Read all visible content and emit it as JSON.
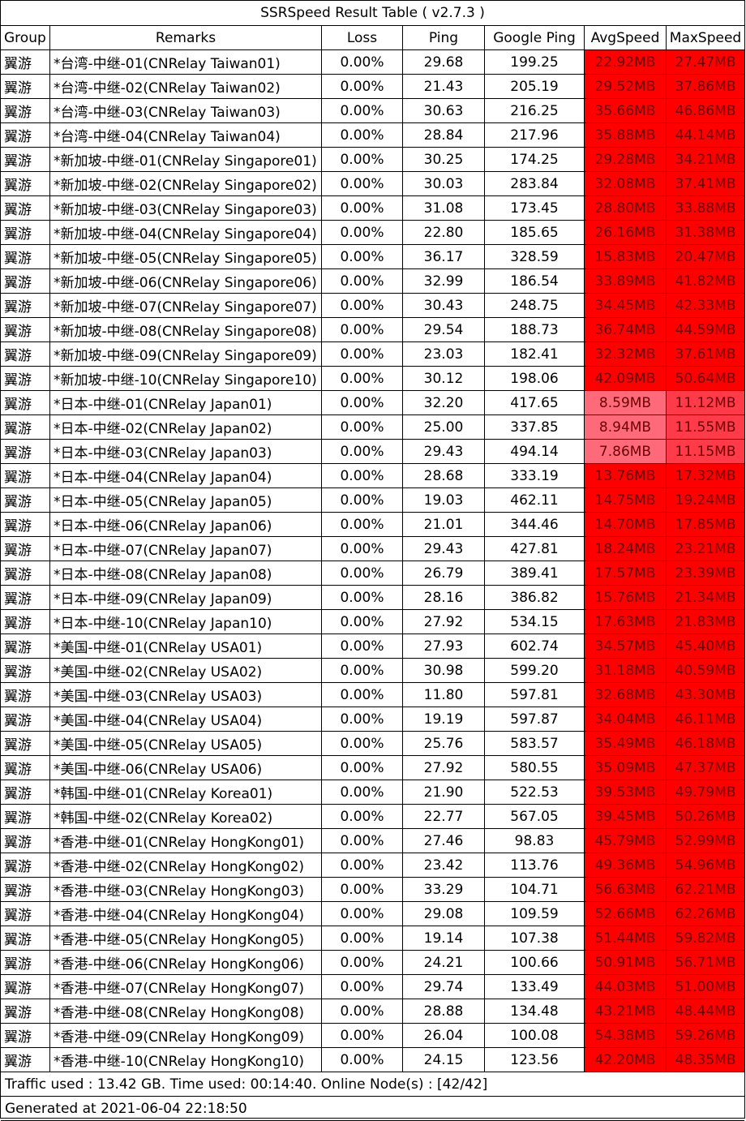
{
  "title": "SSRSpeed Result Table ( v2.7.3 )",
  "headers": [
    "Group",
    "Remarks",
    "Loss",
    "Ping",
    "Google Ping",
    "AvgSpeed",
    "MaxSpeed"
  ],
  "colors": {
    "speed_high": "#ff0000",
    "speed_low": "#ff5f6a",
    "grid": "#000000"
  },
  "rows": [
    {
      "group": "翼游",
      "remarks": "*台湾-中继-01(CNRelay Taiwan01)",
      "loss": "0.00%",
      "ping": "29.68",
      "gping": "199.25",
      "avg": "22.92MB",
      "max": "27.47MB",
      "avg_level": "high",
      "max_level": "high"
    },
    {
      "group": "翼游",
      "remarks": "*台湾-中继-02(CNRelay Taiwan02)",
      "loss": "0.00%",
      "ping": "21.43",
      "gping": "205.19",
      "avg": "29.52MB",
      "max": "37.86MB",
      "avg_level": "high",
      "max_level": "high"
    },
    {
      "group": "翼游",
      "remarks": "*台湾-中继-03(CNRelay Taiwan03)",
      "loss": "0.00%",
      "ping": "30.63",
      "gping": "216.25",
      "avg": "35.66MB",
      "max": "46.86MB",
      "avg_level": "high",
      "max_level": "high"
    },
    {
      "group": "翼游",
      "remarks": "*台湾-中继-04(CNRelay Taiwan04)",
      "loss": "0.00%",
      "ping": "28.84",
      "gping": "217.96",
      "avg": "35.88MB",
      "max": "44.14MB",
      "avg_level": "high",
      "max_level": "high"
    },
    {
      "group": "翼游",
      "remarks": "*新加坡-中继-01(CNRelay Singapore01)",
      "loss": "0.00%",
      "ping": "30.25",
      "gping": "174.25",
      "avg": "29.28MB",
      "max": "34.21MB",
      "avg_level": "high",
      "max_level": "high"
    },
    {
      "group": "翼游",
      "remarks": "*新加坡-中继-02(CNRelay Singapore02)",
      "loss": "0.00%",
      "ping": "30.03",
      "gping": "283.84",
      "avg": "32.08MB",
      "max": "37.41MB",
      "avg_level": "high",
      "max_level": "high"
    },
    {
      "group": "翼游",
      "remarks": "*新加坡-中继-03(CNRelay Singapore03)",
      "loss": "0.00%",
      "ping": "31.08",
      "gping": "173.45",
      "avg": "28.80MB",
      "max": "33.88MB",
      "avg_level": "high",
      "max_level": "high"
    },
    {
      "group": "翼游",
      "remarks": "*新加坡-中继-04(CNRelay Singapore04)",
      "loss": "0.00%",
      "ping": "22.80",
      "gping": "185.65",
      "avg": "26.16MB",
      "max": "31.38MB",
      "avg_level": "high",
      "max_level": "high"
    },
    {
      "group": "翼游",
      "remarks": "*新加坡-中继-05(CNRelay Singapore05)",
      "loss": "0.00%",
      "ping": "36.17",
      "gping": "328.59",
      "avg": "15.83MB",
      "max": "20.47MB",
      "avg_level": "high",
      "max_level": "high"
    },
    {
      "group": "翼游",
      "remarks": "*新加坡-中继-06(CNRelay Singapore06)",
      "loss": "0.00%",
      "ping": "32.99",
      "gping": "186.54",
      "avg": "33.89MB",
      "max": "41.82MB",
      "avg_level": "high",
      "max_level": "high"
    },
    {
      "group": "翼游",
      "remarks": "*新加坡-中继-07(CNRelay Singapore07)",
      "loss": "0.00%",
      "ping": "30.43",
      "gping": "248.75",
      "avg": "34.45MB",
      "max": "42.33MB",
      "avg_level": "high",
      "max_level": "high"
    },
    {
      "group": "翼游",
      "remarks": "*新加坡-中继-08(CNRelay Singapore08)",
      "loss": "0.00%",
      "ping": "29.54",
      "gping": "188.73",
      "avg": "36.74MB",
      "max": "44.59MB",
      "avg_level": "high",
      "max_level": "high"
    },
    {
      "group": "翼游",
      "remarks": "*新加坡-中继-09(CNRelay Singapore09)",
      "loss": "0.00%",
      "ping": "23.03",
      "gping": "182.41",
      "avg": "32.32MB",
      "max": "37.61MB",
      "avg_level": "high",
      "max_level": "high"
    },
    {
      "group": "翼游",
      "remarks": "*新加坡-中继-10(CNRelay Singapore10)",
      "loss": "0.00%",
      "ping": "30.12",
      "gping": "198.06",
      "avg": "42.09MB",
      "max": "50.64MB",
      "avg_level": "high",
      "max_level": "high"
    },
    {
      "group": "翼游",
      "remarks": "*日本-中继-01(CNRelay Japan01)",
      "loss": "0.00%",
      "ping": "32.20",
      "gping": "417.65",
      "avg": "8.59MB",
      "max": "11.12MB",
      "avg_level": "low",
      "max_level": "mid"
    },
    {
      "group": "翼游",
      "remarks": "*日本-中继-02(CNRelay Japan02)",
      "loss": "0.00%",
      "ping": "25.00",
      "gping": "337.85",
      "avg": "8.94MB",
      "max": "11.55MB",
      "avg_level": "low",
      "max_level": "mid"
    },
    {
      "group": "翼游",
      "remarks": "*日本-中继-03(CNRelay Japan03)",
      "loss": "0.00%",
      "ping": "29.43",
      "gping": "494.14",
      "avg": "7.86MB",
      "max": "11.15MB",
      "avg_level": "low",
      "max_level": "mid"
    },
    {
      "group": "翼游",
      "remarks": "*日本-中继-04(CNRelay Japan04)",
      "loss": "0.00%",
      "ping": "28.68",
      "gping": "333.19",
      "avg": "13.76MB",
      "max": "17.32MB",
      "avg_level": "high",
      "max_level": "high"
    },
    {
      "group": "翼游",
      "remarks": "*日本-中继-05(CNRelay Japan05)",
      "loss": "0.00%",
      "ping": "19.03",
      "gping": "462.11",
      "avg": "14.75MB",
      "max": "19.24MB",
      "avg_level": "high",
      "max_level": "high"
    },
    {
      "group": "翼游",
      "remarks": "*日本-中继-06(CNRelay Japan06)",
      "loss": "0.00%",
      "ping": "21.01",
      "gping": "344.46",
      "avg": "14.70MB",
      "max": "17.85MB",
      "avg_level": "high",
      "max_level": "high"
    },
    {
      "group": "翼游",
      "remarks": "*日本-中继-07(CNRelay Japan07)",
      "loss": "0.00%",
      "ping": "29.43",
      "gping": "427.81",
      "avg": "18.24MB",
      "max": "23.21MB",
      "avg_level": "high",
      "max_level": "high"
    },
    {
      "group": "翼游",
      "remarks": "*日本-中继-08(CNRelay Japan08)",
      "loss": "0.00%",
      "ping": "26.79",
      "gping": "389.41",
      "avg": "17.57MB",
      "max": "23.39MB",
      "avg_level": "high",
      "max_level": "high"
    },
    {
      "group": "翼游",
      "remarks": "*日本-中继-09(CNRelay Japan09)",
      "loss": "0.00%",
      "ping": "28.16",
      "gping": "386.82",
      "avg": "15.76MB",
      "max": "21.34MB",
      "avg_level": "high",
      "max_level": "high"
    },
    {
      "group": "翼游",
      "remarks": "*日本-中继-10(CNRelay Japan10)",
      "loss": "0.00%",
      "ping": "27.92",
      "gping": "534.15",
      "avg": "17.63MB",
      "max": "21.83MB",
      "avg_level": "high",
      "max_level": "high"
    },
    {
      "group": "翼游",
      "remarks": "*美国-中继-01(CNRelay USA01)",
      "loss": "0.00%",
      "ping": "27.93",
      "gping": "602.74",
      "avg": "34.57MB",
      "max": "45.40MB",
      "avg_level": "high",
      "max_level": "high"
    },
    {
      "group": "翼游",
      "remarks": "*美国-中继-02(CNRelay USA02)",
      "loss": "0.00%",
      "ping": "30.98",
      "gping": "599.20",
      "avg": "31.18MB",
      "max": "40.59MB",
      "avg_level": "high",
      "max_level": "high"
    },
    {
      "group": "翼游",
      "remarks": "*美国-中继-03(CNRelay USA03)",
      "loss": "0.00%",
      "ping": "11.80",
      "gping": "597.81",
      "avg": "32.68MB",
      "max": "43.30MB",
      "avg_level": "high",
      "max_level": "high"
    },
    {
      "group": "翼游",
      "remarks": "*美国-中继-04(CNRelay USA04)",
      "loss": "0.00%",
      "ping": "19.19",
      "gping": "597.87",
      "avg": "34.04MB",
      "max": "46.11MB",
      "avg_level": "high",
      "max_level": "high"
    },
    {
      "group": "翼游",
      "remarks": "*美国-中继-05(CNRelay USA05)",
      "loss": "0.00%",
      "ping": "25.76",
      "gping": "583.57",
      "avg": "35.49MB",
      "max": "46.18MB",
      "avg_level": "high",
      "max_level": "high"
    },
    {
      "group": "翼游",
      "remarks": "*美国-中继-06(CNRelay USA06)",
      "loss": "0.00%",
      "ping": "27.92",
      "gping": "580.55",
      "avg": "35.09MB",
      "max": "47.37MB",
      "avg_level": "high",
      "max_level": "high"
    },
    {
      "group": "翼游",
      "remarks": "*韩国-中继-01(CNRelay Korea01)",
      "loss": "0.00%",
      "ping": "21.90",
      "gping": "522.53",
      "avg": "39.53MB",
      "max": "49.79MB",
      "avg_level": "high",
      "max_level": "high"
    },
    {
      "group": "翼游",
      "remarks": "*韩国-中继-02(CNRelay Korea02)",
      "loss": "0.00%",
      "ping": "22.77",
      "gping": "567.05",
      "avg": "39.45MB",
      "max": "50.26MB",
      "avg_level": "high",
      "max_level": "high"
    },
    {
      "group": "翼游",
      "remarks": "*香港-中继-01(CNRelay HongKong01)",
      "loss": "0.00%",
      "ping": "27.46",
      "gping": "98.83",
      "avg": "45.79MB",
      "max": "52.99MB",
      "avg_level": "high",
      "max_level": "high"
    },
    {
      "group": "翼游",
      "remarks": "*香港-中继-02(CNRelay HongKong02)",
      "loss": "0.00%",
      "ping": "23.42",
      "gping": "113.76",
      "avg": "49.36MB",
      "max": "54.96MB",
      "avg_level": "high",
      "max_level": "high"
    },
    {
      "group": "翼游",
      "remarks": "*香港-中继-03(CNRelay HongKong03)",
      "loss": "0.00%",
      "ping": "33.29",
      "gping": "104.71",
      "avg": "56.63MB",
      "max": "62.21MB",
      "avg_level": "high",
      "max_level": "high"
    },
    {
      "group": "翼游",
      "remarks": "*香港-中继-04(CNRelay HongKong04)",
      "loss": "0.00%",
      "ping": "29.08",
      "gping": "109.59",
      "avg": "52.66MB",
      "max": "62.26MB",
      "avg_level": "high",
      "max_level": "high"
    },
    {
      "group": "翼游",
      "remarks": "*香港-中继-05(CNRelay HongKong05)",
      "loss": "0.00%",
      "ping": "19.14",
      "gping": "107.38",
      "avg": "51.44MB",
      "max": "59.82MB",
      "avg_level": "high",
      "max_level": "high"
    },
    {
      "group": "翼游",
      "remarks": "*香港-中继-06(CNRelay HongKong06)",
      "loss": "0.00%",
      "ping": "24.21",
      "gping": "100.66",
      "avg": "50.91MB",
      "max": "56.71MB",
      "avg_level": "high",
      "max_level": "high"
    },
    {
      "group": "翼游",
      "remarks": "*香港-中继-07(CNRelay HongKong07)",
      "loss": "0.00%",
      "ping": "29.74",
      "gping": "133.49",
      "avg": "44.03MB",
      "max": "51.00MB",
      "avg_level": "high",
      "max_level": "high"
    },
    {
      "group": "翼游",
      "remarks": "*香港-中继-08(CNRelay HongKong08)",
      "loss": "0.00%",
      "ping": "28.88",
      "gping": "134.48",
      "avg": "43.21MB",
      "max": "48.44MB",
      "avg_level": "high",
      "max_level": "high"
    },
    {
      "group": "翼游",
      "remarks": "*香港-中继-09(CNRelay HongKong09)",
      "loss": "0.00%",
      "ping": "26.04",
      "gping": "100.08",
      "avg": "54.38MB",
      "max": "59.26MB",
      "avg_level": "high",
      "max_level": "high"
    },
    {
      "group": "翼游",
      "remarks": "*香港-中继-10(CNRelay HongKong10)",
      "loss": "0.00%",
      "ping": "24.15",
      "gping": "123.56",
      "avg": "42.20MB",
      "max": "48.35MB",
      "avg_level": "high",
      "max_level": "high"
    }
  ],
  "footer": {
    "traffic": "Traffic used : 13.42 GB. Time used: 00:14:40. Online Node(s) : [42/42]",
    "generated": "Generated at 2021-06-04 22:18:50"
  }
}
